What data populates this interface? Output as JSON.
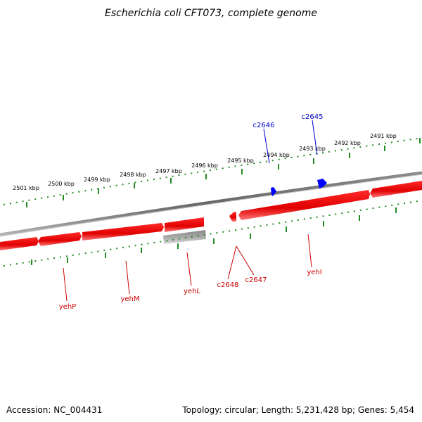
{
  "title": "Escherichia coli CFT073, complete genome",
  "accession": "Accession: NC_004431",
  "summary": "Topology: circular; Length: 5,231,428 bp; Genes: 5,454",
  "colors": {
    "forward_gene": "#ff0000",
    "reverse_gene": "#0000ff",
    "pseudo_gene": "#c0c0c0",
    "backbone": "#808080",
    "ticks": "#228b22"
  },
  "kbp_labels": [
    "2501 kbp",
    "2500 kbp",
    "2499 kbp",
    "2498 kbp",
    "2497 kbp",
    "2496 kbp",
    "2495 kbp",
    "2494 kbp",
    "2493 kbp",
    "2492 kbp",
    "2491 kbp"
  ],
  "gene_labels": {
    "c2646": "c2646",
    "c2645": "c2645",
    "yehP": "yehP",
    "yehM": "yehM",
    "yehL": "yehL",
    "c2648": "c2648",
    "c2647": "c2647",
    "yehI": "yehI"
  }
}
